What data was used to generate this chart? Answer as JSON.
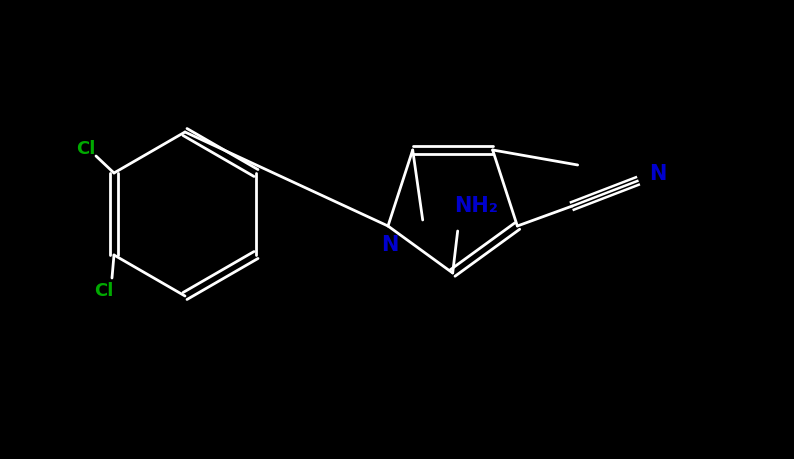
{
  "background_color": "#000000",
  "bond_color": "#ffffff",
  "nitrogen_color": "#0000cd",
  "chlorine_color": "#00aa00",
  "label_NH2": "NH₂",
  "label_N_pyrrole": "N",
  "label_N_nitrile": "N",
  "label_Cl1": "Cl",
  "label_Cl2": "Cl",
  "figsize": [
    7.94,
    4.6
  ],
  "dpi": 100,
  "xlim": [
    0,
    794
  ],
  "ylim": [
    0,
    460
  ]
}
